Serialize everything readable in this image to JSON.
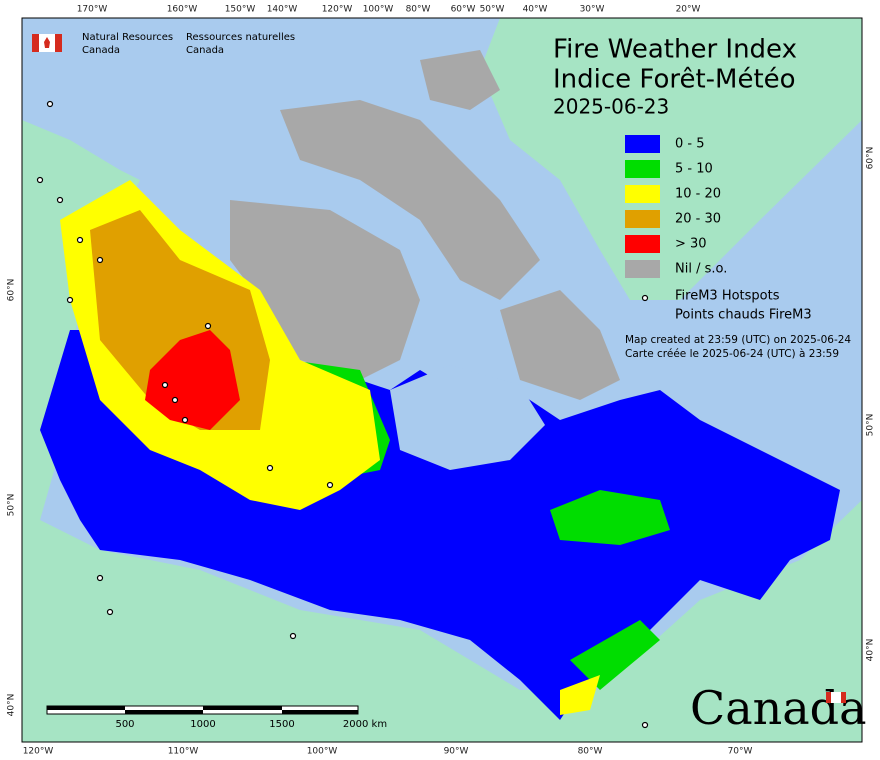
{
  "header": {
    "org_en": [
      "Natural Resources",
      "Canada"
    ],
    "org_fr": [
      "Ressources naturelles",
      "Canada"
    ]
  },
  "title": [
    "Fire Weather Index",
    "Indice Forêt-Météo",
    "2025-06-23"
  ],
  "legend": [
    {
      "label": "0 - 5",
      "color": "#0000ff"
    },
    {
      "label": "5 - 10",
      "color": "#00dd00"
    },
    {
      "label": "10 - 20",
      "color": "#ffff00"
    },
    {
      "label": "20 - 30",
      "color": "#e0a000"
    },
    {
      "label": "> 30",
      "color": "#ff0000"
    },
    {
      "label": "Nil / s.o.",
      "color": "#a8a8a8"
    }
  ],
  "hotspots": [
    "FireM3 Hotspots",
    "Points chauds FireM3"
  ],
  "credit": [
    "Map created at 23:59 (UTC) on 2025-06-24",
    "Carte créée le 2025-06-24 (UTC) à 23:59"
  ],
  "axes": {
    "top": [
      "170°W",
      "160°W",
      "150°W",
      "140°W",
      "120°W",
      "100°W",
      "80°W",
      "60°W",
      "50°W",
      "40°W",
      "30°W",
      "20°W"
    ],
    "bottom": [
      "120°W",
      "110°W",
      "100°W",
      "90°W",
      "80°W",
      "70°W"
    ],
    "left": [
      "60°N",
      "50°N",
      "40°N"
    ],
    "right": [
      "60°N",
      "50°N",
      "40°N"
    ]
  },
  "scale_bar": [
    "500",
    "1000",
    "1500",
    "2000 km"
  ],
  "wordmark": "Canada"
}
